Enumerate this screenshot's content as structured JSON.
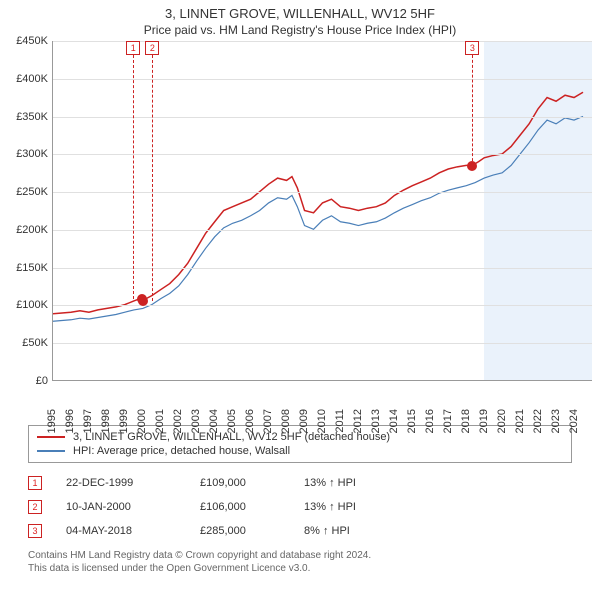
{
  "title": "3, LINNET GROVE, WILLENHALL, WV12 5HF",
  "subtitle": "Price paid vs. HM Land Registry's House Price Index (HPI)",
  "chart": {
    "type": "line",
    "background_color": "#ffffff",
    "grid_color": "#e0e0e0",
    "axis_color": "#999999",
    "xlim": [
      1995,
      2025
    ],
    "ylim": [
      0,
      450000
    ],
    "ytick_step": 50000,
    "yticks": [
      "£0",
      "£50K",
      "£100K",
      "£150K",
      "£200K",
      "£250K",
      "£300K",
      "£350K",
      "£400K",
      "£450K"
    ],
    "xticks": [
      "1995",
      "1996",
      "1997",
      "1998",
      "1999",
      "2000",
      "2001",
      "2002",
      "2003",
      "2004",
      "2005",
      "2006",
      "2007",
      "2008",
      "2009",
      "2010",
      "2011",
      "2012",
      "2013",
      "2014",
      "2015",
      "2016",
      "2017",
      "2018",
      "2019",
      "2020",
      "2021",
      "2022",
      "2023",
      "2024"
    ],
    "future_shade_from": 2019,
    "future_shade_color": "#eaf2fb",
    "series": [
      {
        "name": "3, LINNET GROVE, WILLENHALL, WV12 5HF (detached house)",
        "color": "#cc2222",
        "line_width": 1.5,
        "data": [
          [
            1995.0,
            88000
          ],
          [
            1995.5,
            89000
          ],
          [
            1996.0,
            90000
          ],
          [
            1996.5,
            92000
          ],
          [
            1997.0,
            90000
          ],
          [
            1997.5,
            93000
          ],
          [
            1998.0,
            95000
          ],
          [
            1998.5,
            97000
          ],
          [
            1999.0,
            100000
          ],
          [
            1999.5,
            105000
          ],
          [
            1999.97,
            109000
          ],
          [
            2000.03,
            106000
          ],
          [
            2000.5,
            112000
          ],
          [
            2001.0,
            120000
          ],
          [
            2001.5,
            128000
          ],
          [
            2002.0,
            140000
          ],
          [
            2002.5,
            155000
          ],
          [
            2003.0,
            175000
          ],
          [
            2003.5,
            195000
          ],
          [
            2004.0,
            210000
          ],
          [
            2004.5,
            225000
          ],
          [
            2005.0,
            230000
          ],
          [
            2005.5,
            235000
          ],
          [
            2006.0,
            240000
          ],
          [
            2006.5,
            250000
          ],
          [
            2007.0,
            260000
          ],
          [
            2007.5,
            268000
          ],
          [
            2008.0,
            265000
          ],
          [
            2008.3,
            270000
          ],
          [
            2008.6,
            255000
          ],
          [
            2009.0,
            225000
          ],
          [
            2009.5,
            222000
          ],
          [
            2010.0,
            235000
          ],
          [
            2010.5,
            240000
          ],
          [
            2011.0,
            230000
          ],
          [
            2011.5,
            228000
          ],
          [
            2012.0,
            225000
          ],
          [
            2012.5,
            228000
          ],
          [
            2013.0,
            230000
          ],
          [
            2013.5,
            235000
          ],
          [
            2014.0,
            245000
          ],
          [
            2014.5,
            252000
          ],
          [
            2015.0,
            258000
          ],
          [
            2015.5,
            263000
          ],
          [
            2016.0,
            268000
          ],
          [
            2016.5,
            275000
          ],
          [
            2017.0,
            280000
          ],
          [
            2017.5,
            283000
          ],
          [
            2018.0,
            285000
          ],
          [
            2018.34,
            285000
          ],
          [
            2018.7,
            290000
          ],
          [
            2019.0,
            295000
          ],
          [
            2019.5,
            298000
          ],
          [
            2020.0,
            300000
          ],
          [
            2020.5,
            310000
          ],
          [
            2021.0,
            325000
          ],
          [
            2021.5,
            340000
          ],
          [
            2022.0,
            360000
          ],
          [
            2022.5,
            375000
          ],
          [
            2023.0,
            370000
          ],
          [
            2023.5,
            378000
          ],
          [
            2024.0,
            375000
          ],
          [
            2024.5,
            382000
          ]
        ]
      },
      {
        "name": "HPI: Average price, detached house, Walsall",
        "color": "#4a7fb8",
        "line_width": 1.2,
        "data": [
          [
            1995.0,
            78000
          ],
          [
            1995.5,
            79000
          ],
          [
            1996.0,
            80000
          ],
          [
            1996.5,
            82000
          ],
          [
            1997.0,
            81000
          ],
          [
            1997.5,
            83000
          ],
          [
            1998.0,
            85000
          ],
          [
            1998.5,
            87000
          ],
          [
            1999.0,
            90000
          ],
          [
            1999.5,
            93000
          ],
          [
            2000.0,
            95000
          ],
          [
            2000.5,
            100000
          ],
          [
            2001.0,
            108000
          ],
          [
            2001.5,
            115000
          ],
          [
            2002.0,
            125000
          ],
          [
            2002.5,
            140000
          ],
          [
            2003.0,
            158000
          ],
          [
            2003.5,
            175000
          ],
          [
            2004.0,
            190000
          ],
          [
            2004.5,
            202000
          ],
          [
            2005.0,
            208000
          ],
          [
            2005.5,
            212000
          ],
          [
            2006.0,
            218000
          ],
          [
            2006.5,
            225000
          ],
          [
            2007.0,
            235000
          ],
          [
            2007.5,
            242000
          ],
          [
            2008.0,
            240000
          ],
          [
            2008.3,
            245000
          ],
          [
            2008.6,
            230000
          ],
          [
            2009.0,
            205000
          ],
          [
            2009.5,
            200000
          ],
          [
            2010.0,
            212000
          ],
          [
            2010.5,
            218000
          ],
          [
            2011.0,
            210000
          ],
          [
            2011.5,
            208000
          ],
          [
            2012.0,
            205000
          ],
          [
            2012.5,
            208000
          ],
          [
            2013.0,
            210000
          ],
          [
            2013.5,
            215000
          ],
          [
            2014.0,
            222000
          ],
          [
            2014.5,
            228000
          ],
          [
            2015.0,
            233000
          ],
          [
            2015.5,
            238000
          ],
          [
            2016.0,
            242000
          ],
          [
            2016.5,
            248000
          ],
          [
            2017.0,
            252000
          ],
          [
            2017.5,
            255000
          ],
          [
            2018.0,
            258000
          ],
          [
            2018.5,
            262000
          ],
          [
            2019.0,
            268000
          ],
          [
            2019.5,
            272000
          ],
          [
            2020.0,
            275000
          ],
          [
            2020.5,
            285000
          ],
          [
            2021.0,
            300000
          ],
          [
            2021.5,
            315000
          ],
          [
            2022.0,
            332000
          ],
          [
            2022.5,
            345000
          ],
          [
            2023.0,
            340000
          ],
          [
            2023.5,
            348000
          ],
          [
            2024.0,
            345000
          ],
          [
            2024.5,
            350000
          ]
        ]
      }
    ],
    "markers": [
      {
        "id": "1",
        "x": 1999.97,
        "y": 109000,
        "box_y_top": true,
        "dot_color": "#cc2222",
        "border_color": "#cc2222"
      },
      {
        "id": "2",
        "x": 2000.03,
        "y": 106000,
        "box_y_top": true,
        "dot_color": "#cc2222",
        "border_color": "#cc2222"
      },
      {
        "id": "3",
        "x": 2018.34,
        "y": 285000,
        "box_y_top": true,
        "dot_color": "#cc2222",
        "border_color": "#cc2222"
      }
    ]
  },
  "legend": {
    "items": [
      {
        "label": "3, LINNET GROVE, WILLENHALL, WV12 5HF (detached house)",
        "color": "#cc2222"
      },
      {
        "label": "HPI: Average price, detached house, Walsall",
        "color": "#4a7fb8"
      }
    ]
  },
  "events": [
    {
      "id": "1",
      "date": "22-DEC-1999",
      "price": "£109,000",
      "delta": "13% ↑ HPI",
      "border_color": "#cc2222"
    },
    {
      "id": "2",
      "date": "10-JAN-2000",
      "price": "£106,000",
      "delta": "13% ↑ HPI",
      "border_color": "#cc2222"
    },
    {
      "id": "3",
      "date": "04-MAY-2018",
      "price": "£285,000",
      "delta": "8% ↑ HPI",
      "border_color": "#cc2222"
    }
  ],
  "footer": {
    "line1": "Contains HM Land Registry data © Crown copyright and database right 2024.",
    "line2": "This data is licensed under the Open Government Licence v3.0."
  }
}
